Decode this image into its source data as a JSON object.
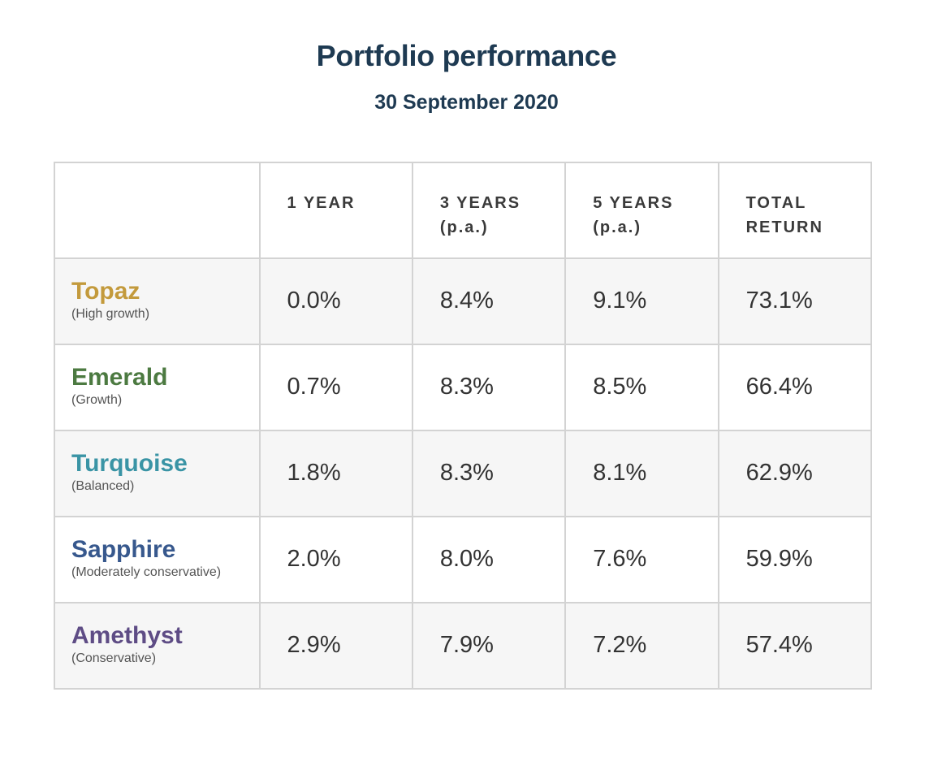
{
  "header": {
    "title": "Portfolio performance",
    "subtitle": "30 September 2020"
  },
  "chart_data": {
    "type": "table",
    "title": "Portfolio performance",
    "subtitle": "30 September 2020",
    "columns": [
      "",
      "1 YEAR",
      "3 YEARS\n(p.a.)",
      "5 YEARS\n(p.a.)",
      "TOTAL\nRETURN"
    ],
    "rows": [
      {
        "name": "Topaz",
        "description": "(High growth)",
        "color": "#c39a3c",
        "values": [
          "0.0%",
          "8.4%",
          "9.1%",
          "73.1%"
        ]
      },
      {
        "name": "Emerald",
        "description": "(Growth)",
        "color": "#4c7a41",
        "values": [
          "0.7%",
          "8.3%",
          "8.5%",
          "66.4%"
        ]
      },
      {
        "name": "Turquoise",
        "description": "(Balanced)",
        "color": "#3a94a5",
        "values": [
          "1.8%",
          "8.3%",
          "8.1%",
          "62.9%"
        ]
      },
      {
        "name": "Sapphire",
        "description": "(Moderately conservative)",
        "color": "#37588d",
        "values": [
          "2.0%",
          "8.0%",
          "7.6%",
          "59.9%"
        ]
      },
      {
        "name": "Amethyst",
        "description": "(Conservative)",
        "color": "#5e4c85",
        "values": [
          "2.9%",
          "7.9%",
          "7.2%",
          "57.4%"
        ]
      }
    ]
  }
}
